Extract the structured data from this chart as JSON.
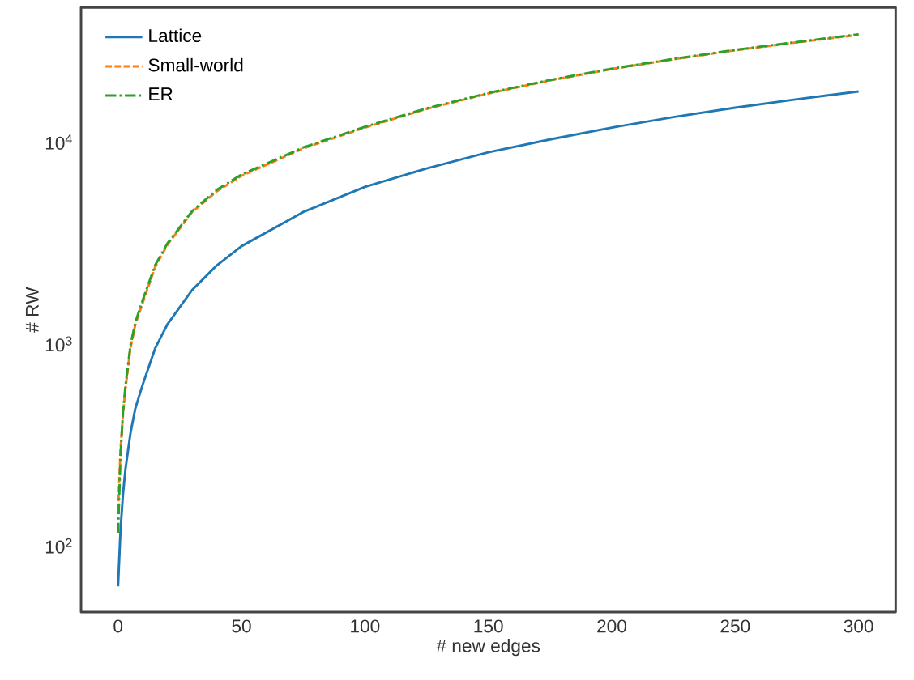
{
  "chart_data": {
    "type": "line",
    "xlabel": "# new edges",
    "ylabel": "# RW",
    "log": "y",
    "xlim": [
      -15,
      315
    ],
    "ylim": [
      47,
      46400
    ],
    "xticks": [
      0,
      50,
      100,
      150,
      200,
      250,
      300
    ],
    "yticks": [
      {
        "value": 100,
        "label": "10$^{2}$"
      },
      {
        "value": 1000,
        "label": "10$^{3}$"
      },
      {
        "value": 10000,
        "label": "10$^{4}$"
      }
    ],
    "grid": false,
    "legend": "top left",
    "marker": "none",
    "x": [
      0,
      1,
      2,
      3,
      5,
      7,
      10,
      15,
      20,
      30,
      40,
      50,
      75,
      100,
      125,
      150,
      175,
      200,
      225,
      250,
      275,
      300
    ],
    "series": [
      {
        "name": "Lattice",
        "color": "#1f77b4",
        "line_style": "solid",
        "values": [
          63,
          120,
          180,
          240,
          360,
          480,
          630,
          950,
          1250,
          1850,
          2450,
          3050,
          4500,
          6000,
          7400,
          8900,
          10300,
          11800,
          13300,
          14800,
          16300,
          17800
        ]
      },
      {
        "name": "Small-world",
        "color": "#ff7f0e",
        "line_style": "dashed",
        "values": [
          150,
          300,
          450,
          600,
          950,
          1250,
          1600,
          2400,
          3100,
          4500,
          5700,
          6800,
          9300,
          11800,
          14600,
          17400,
          20200,
          23000,
          25700,
          28500,
          31200,
          34000
        ]
      },
      {
        "name": "ER",
        "color": "#2ca02c",
        "line_style": "dashdot",
        "values": [
          115,
          280,
          460,
          620,
          980,
          1280,
          1650,
          2450,
          3150,
          4550,
          5800,
          6900,
          9400,
          11900,
          14700,
          17500,
          20300,
          23100,
          25800,
          28600,
          31300,
          34200
        ]
      }
    ]
  }
}
